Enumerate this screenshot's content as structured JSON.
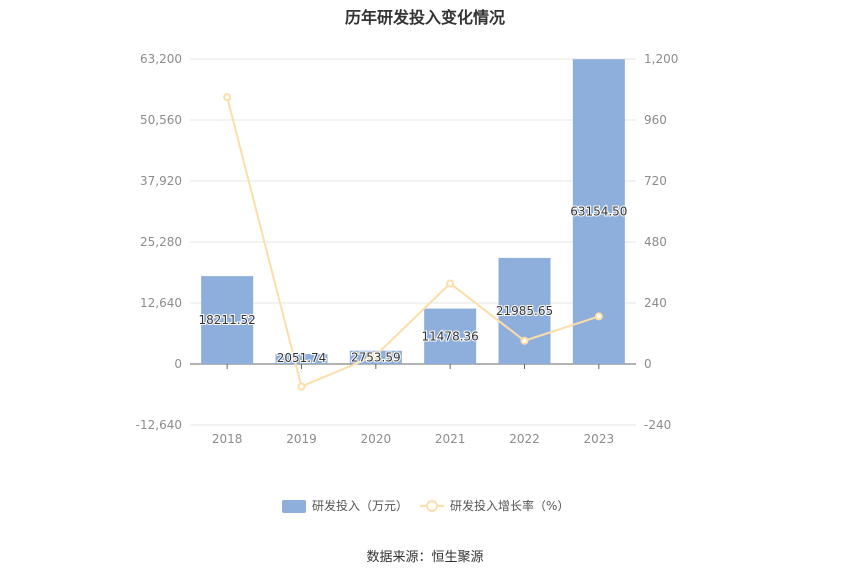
{
  "title": "历年研发投入变化情况",
  "source": "数据来源：恒生聚源",
  "colors": {
    "bar": "#8eaedb",
    "line": "#fbdea8",
    "grid": "#e6e6e6",
    "axis": "#666666"
  },
  "chart_data": {
    "type": "bar",
    "title": "历年研发投入变化情况",
    "categories": [
      "2018",
      "2019",
      "2020",
      "2021",
      "2022",
      "2023"
    ],
    "series": [
      {
        "name": "研发投入（万元）",
        "type": "bar",
        "axis": "left",
        "values": [
          18211.52,
          2051.74,
          2753.59,
          11478.36,
          21985.65,
          63154.5
        ],
        "labels": [
          "18211.52",
          "2051.74",
          "2753.59",
          "11478.36",
          "21985.65",
          "63154.50"
        ]
      },
      {
        "name": "研发投入增长率（%）",
        "type": "line",
        "axis": "right",
        "values": [
          1050,
          -88.7,
          34.2,
          316.8,
          91.5,
          187.3
        ]
      }
    ],
    "y_left": {
      "ylim": [
        -12640,
        63200
      ],
      "ticks": [
        -12640,
        0,
        12640,
        25280,
        37920,
        50560,
        63200
      ],
      "tick_labels": [
        "-12,640",
        "0",
        "12,640",
        "25,280",
        "37,920",
        "50,560",
        "63,200"
      ]
    },
    "y_right": {
      "ylim": [
        -240,
        1200
      ],
      "ticks": [
        -240,
        0,
        240,
        480,
        720,
        960,
        1200
      ],
      "tick_labels": [
        "-240",
        "0",
        "240",
        "480",
        "720",
        "960",
        "1,200"
      ]
    },
    "grid": true,
    "legend": "bottom-center"
  }
}
